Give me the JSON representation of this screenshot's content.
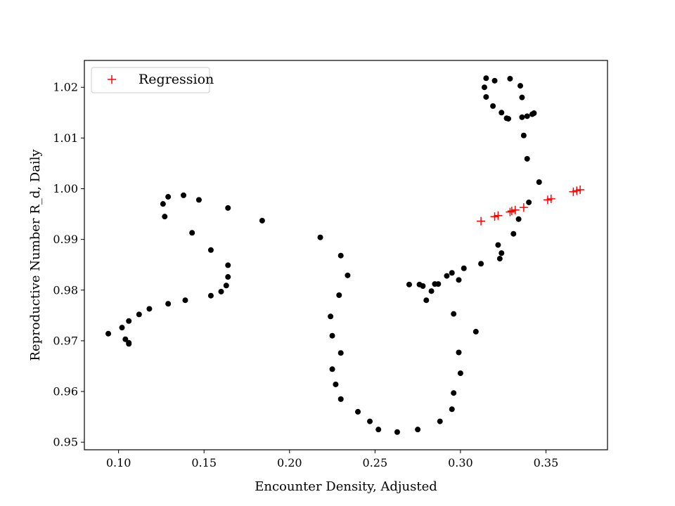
{
  "chart_data": {
    "type": "scatter",
    "xlabel": "Encounter Density, Adjusted",
    "ylabel": "Reproductive Number R_d, Daily",
    "xlim": [
      0.08,
      0.386
    ],
    "ylim": [
      0.9485,
      1.0253
    ],
    "x_ticks": [
      0.1,
      0.15,
      0.2,
      0.25,
      0.3,
      0.35
    ],
    "y_ticks": [
      0.95,
      0.96,
      0.97,
      0.98,
      0.99,
      1.0,
      1.01,
      1.02
    ],
    "x_tick_labels": [
      "0.10",
      "0.15",
      "0.20",
      "0.25",
      "0.30",
      "0.35"
    ],
    "y_tick_labels": [
      "0.95",
      "0.96",
      "0.97",
      "0.98",
      "0.99",
      "1.00",
      "1.01",
      "1.02"
    ],
    "grid": false,
    "legend": {
      "position": "top-left",
      "entries": [
        "Regression"
      ]
    },
    "series": [
      {
        "marker": "dot",
        "color": "#000000",
        "points": [
          [
            0.094,
            0.9714
          ],
          [
            0.102,
            0.9726
          ],
          [
            0.104,
            0.9703
          ],
          [
            0.106,
            0.9694
          ],
          [
            0.106,
            0.9696
          ],
          [
            0.106,
            0.9739
          ],
          [
            0.112,
            0.9752
          ],
          [
            0.118,
            0.9763
          ],
          [
            0.129,
            0.9773
          ],
          [
            0.139,
            0.978
          ],
          [
            0.154,
            0.9789
          ],
          [
            0.16,
            0.9797
          ],
          [
            0.163,
            0.9809
          ],
          [
            0.164,
            0.9826
          ],
          [
            0.164,
            0.9849
          ],
          [
            0.154,
            0.9879
          ],
          [
            0.143,
            0.9913
          ],
          [
            0.127,
            0.9945
          ],
          [
            0.126,
            0.997
          ],
          [
            0.129,
            0.9984
          ],
          [
            0.138,
            0.9987
          ],
          [
            0.147,
            0.9978
          ],
          [
            0.164,
            0.9962
          ],
          [
            0.184,
            0.9937
          ],
          [
            0.218,
            0.9904
          ],
          [
            0.23,
            0.9868
          ],
          [
            0.234,
            0.9829
          ],
          [
            0.229,
            0.979
          ],
          [
            0.224,
            0.9748
          ],
          [
            0.225,
            0.971
          ],
          [
            0.23,
            0.9676
          ],
          [
            0.225,
            0.9644
          ],
          [
            0.227,
            0.9614
          ],
          [
            0.23,
            0.9585
          ],
          [
            0.24,
            0.956
          ],
          [
            0.247,
            0.9541
          ],
          [
            0.252,
            0.9525
          ],
          [
            0.263,
            0.952
          ],
          [
            0.275,
            0.9525
          ],
          [
            0.288,
            0.9541
          ],
          [
            0.295,
            0.9565
          ],
          [
            0.296,
            0.9597
          ],
          [
            0.3,
            0.9636
          ],
          [
            0.299,
            0.9677
          ],
          [
            0.309,
            0.9718
          ],
          [
            0.296,
            0.9753
          ],
          [
            0.28,
            0.978
          ],
          [
            0.283,
            0.9798
          ],
          [
            0.287,
            0.9812
          ],
          [
            0.285,
            0.9812
          ],
          [
            0.278,
            0.9808
          ],
          [
            0.276,
            0.9811
          ],
          [
            0.27,
            0.9811
          ],
          [
            0.292,
            0.9828
          ],
          [
            0.295,
            0.9834
          ],
          [
            0.299,
            0.982
          ],
          [
            0.302,
            0.9843
          ],
          [
            0.312,
            0.9852
          ],
          [
            0.323,
            0.9862
          ],
          [
            0.324,
            0.9873
          ],
          [
            0.322,
            0.9889
          ],
          [
            0.331,
            0.9911
          ],
          [
            0.334,
            0.994
          ],
          [
            0.34,
            0.9973
          ],
          [
            0.346,
            1.0013
          ],
          [
            0.339,
            1.0059
          ],
          [
            0.337,
            1.0105
          ],
          [
            0.336,
            1.0141
          ],
          [
            0.339,
            1.0143
          ],
          [
            0.342,
            1.0147
          ],
          [
            0.343,
            1.0149
          ],
          [
            0.336,
            1.018
          ],
          [
            0.335,
            1.0203
          ],
          [
            0.329,
            1.0217
          ],
          [
            0.32,
            1.0213
          ],
          [
            0.315,
            1.0218
          ],
          [
            0.314,
            1.02
          ],
          [
            0.315,
            1.0181
          ],
          [
            0.319,
            1.0163
          ],
          [
            0.324,
            1.015
          ],
          [
            0.327,
            1.0139
          ],
          [
            0.328,
            1.0138
          ]
        ]
      },
      {
        "name": "Regression",
        "marker": "plus",
        "color": "#ff0000",
        "points": [
          [
            0.312,
            0.9936
          ],
          [
            0.32,
            0.9945
          ],
          [
            0.322,
            0.9947
          ],
          [
            0.329,
            0.9954
          ],
          [
            0.33,
            0.9956
          ],
          [
            0.332,
            0.9958
          ],
          [
            0.337,
            0.9963
          ],
          [
            0.351,
            0.9978
          ],
          [
            0.353,
            0.998
          ],
          [
            0.366,
            0.9994
          ],
          [
            0.368,
            0.9996
          ],
          [
            0.37,
            0.9998
          ]
        ]
      }
    ]
  }
}
